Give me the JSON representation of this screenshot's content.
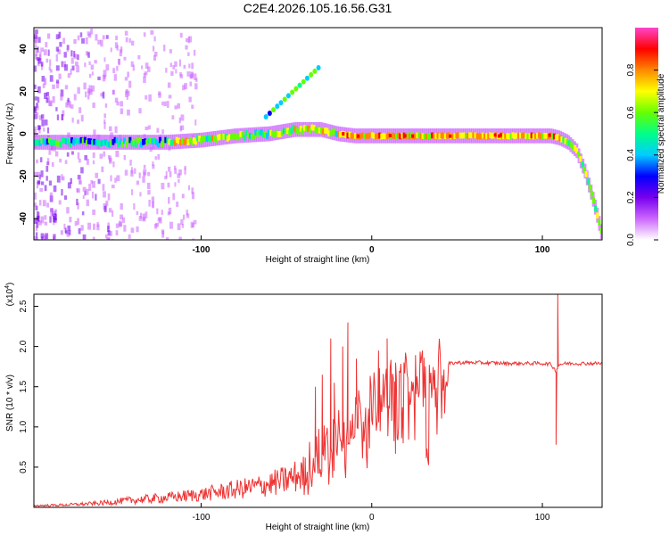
{
  "figure": {
    "title": "C2E4.2026.105.16.56.G31"
  },
  "chart_data": [
    {
      "type": "heatmap",
      "title": "C2E4.2026.105.16.56.G31",
      "xlabel": "Height of straight line (km)",
      "ylabel": "Frequency (Hz)",
      "xlim": [
        -198,
        135
      ],
      "ylim": [
        -50,
        50
      ],
      "xticks": [
        {
          "value": -100,
          "label": "-100"
        },
        {
          "value": 0,
          "label": "0"
        },
        {
          "value": 100,
          "label": "100"
        }
      ],
      "yticks": [
        {
          "value": -40,
          "label": "-40"
        },
        {
          "value": -20,
          "label": "-20"
        },
        {
          "value": 0,
          "label": "0"
        },
        {
          "value": 20,
          "label": "20"
        },
        {
          "value": 40,
          "label": "40"
        }
      ],
      "ridge": {
        "name": "dominant frequency track",
        "x": [
          -198,
          -160,
          -120,
          -100,
          -80,
          -60,
          -45,
          -30,
          -20,
          -10,
          0,
          20,
          50,
          80,
          100,
          105,
          110,
          115,
          120,
          125,
          130,
          135
        ],
        "y": [
          -4,
          -4,
          -4,
          -3,
          -1,
          0,
          2,
          2,
          0,
          -1,
          -1,
          -1,
          -1,
          -1,
          -1,
          -1,
          -2,
          -4,
          -8,
          -18,
          -32,
          -48
        ]
      },
      "colorbar": {
        "label": "Normalized spectral amplitude",
        "range": [
          0,
          1
        ],
        "ticks": [
          {
            "value": 0.0,
            "label": "0.0"
          },
          {
            "value": 0.2,
            "label": "0.2"
          },
          {
            "value": 0.4,
            "label": "0.4"
          },
          {
            "value": 0.6,
            "label": "0.6"
          },
          {
            "value": 0.8,
            "label": "0.8"
          }
        ],
        "colors": [
          "#ffffff",
          "#cc66ff",
          "#7700ee",
          "#0000ff",
          "#00ccff",
          "#00ff88",
          "#66ff00",
          "#ffff00",
          "#ff8800",
          "#ff0000",
          "#ff44cc"
        ]
      }
    },
    {
      "type": "line",
      "xlabel": "Height of straight line (km)",
      "ylabel": "SNR (10 * v/v)",
      "yscale_label": "(x10",
      "yscale_exp": "4",
      "yscale_close": ")",
      "xlim": [
        -198,
        135
      ],
      "ylim": [
        0,
        2.65
      ],
      "xticks": [
        {
          "value": -100,
          "label": "-100"
        },
        {
          "value": 0,
          "label": "0"
        },
        {
          "value": 100,
          "label": "100"
        }
      ],
      "yticks": [
        {
          "value": 0.5,
          "label": "0.5"
        },
        {
          "value": 1.0,
          "label": "1.0"
        },
        {
          "value": 1.5,
          "label": "1.5"
        },
        {
          "value": 2.0,
          "label": "2.0"
        },
        {
          "value": 2.5,
          "label": "2.5"
        }
      ],
      "color": "#ee3333",
      "series": [
        {
          "name": "SNR",
          "x": [
            -198,
            -180,
            -160,
            -150,
            -140,
            -120,
            -100,
            -90,
            -80,
            -70,
            -60,
            -50,
            -40,
            -35,
            -30,
            -25,
            -20,
            -15,
            -10,
            -5,
            0,
            5,
            10,
            20,
            30,
            40,
            50,
            60,
            80,
            100,
            105,
            107,
            108,
            110,
            115,
            120,
            135
          ],
          "y": [
            0.02,
            0.03,
            0.05,
            0.07,
            0.09,
            0.12,
            0.16,
            0.19,
            0.22,
            0.25,
            0.29,
            0.34,
            0.42,
            0.55,
            0.72,
            0.85,
            1.0,
            1.08,
            1.15,
            1.22,
            1.3,
            1.42,
            1.5,
            1.6,
            1.7,
            1.77,
            1.8,
            1.8,
            1.79,
            1.79,
            1.78,
            1.72,
            1.7,
            1.78,
            1.79,
            1.79,
            1.79
          ]
        }
      ],
      "spikes": [
        {
          "x": -39,
          "y": 0.62
        },
        {
          "x": -33,
          "y": 1.5
        },
        {
          "x": -29,
          "y": 1.65
        },
        {
          "x": -24,
          "y": 2.1
        },
        {
          "x": -22,
          "y": 1.55
        },
        {
          "x": -17,
          "y": 2.0
        },
        {
          "x": -14,
          "y": 2.3
        },
        {
          "x": -9,
          "y": 1.85
        },
        {
          "x": 4,
          "y": 1.95
        },
        {
          "x": 9,
          "y": 2.1
        },
        {
          "x": 14,
          "y": 1.8
        },
        {
          "x": 108,
          "y": 0.78
        },
        {
          "x": 109,
          "y": 2.65
        }
      ]
    }
  ]
}
